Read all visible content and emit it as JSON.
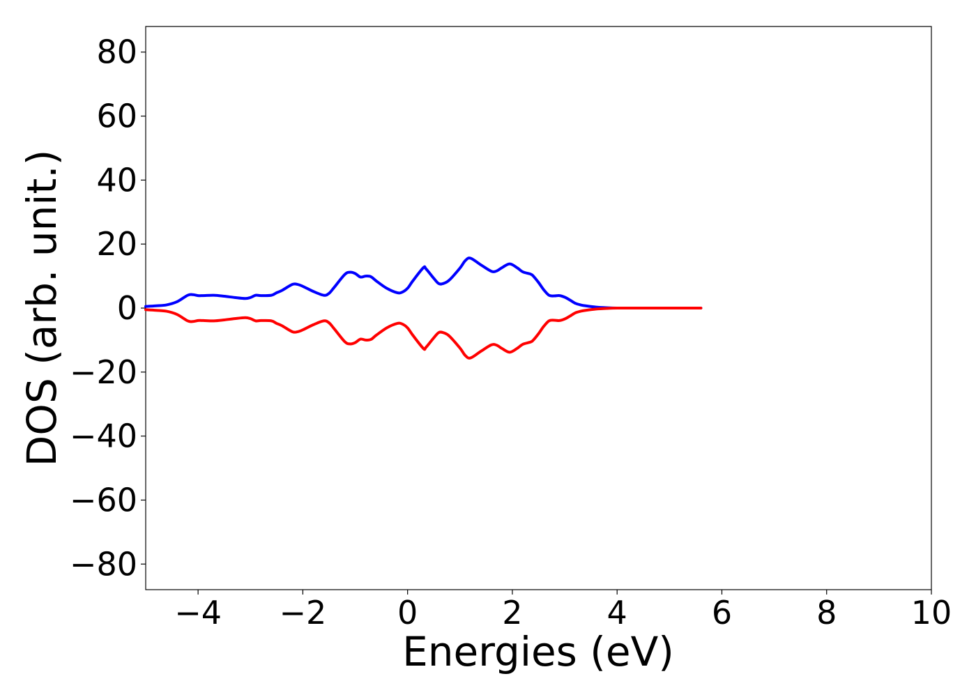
{
  "chart_data": {
    "type": "line",
    "title": "",
    "xlabel": "Energies (eV)",
    "ylabel": "DOS (arb. unit.)",
    "xlim": [
      -5,
      10
    ],
    "ylim": [
      -88,
      88
    ],
    "xticks": [
      -4,
      -2,
      0,
      2,
      4,
      6,
      8,
      10
    ],
    "xtick_labels": [
      "−4",
      "−2",
      "0",
      "2",
      "4",
      "6",
      "8",
      "10"
    ],
    "yticks": [
      80,
      60,
      40,
      20,
      0,
      -20,
      -40,
      -60,
      -80
    ],
    "ytick_labels": [
      "80",
      "60",
      "40",
      "20",
      "0",
      "−20",
      "−40",
      "−60",
      "−80"
    ],
    "grid": false,
    "legend": "none",
    "series": [
      {
        "color": "#0000ff",
        "x": [
          -5.0,
          -4.8,
          -4.6,
          -4.4,
          -4.2,
          -4.1,
          -4.0,
          -3.9,
          -3.7,
          -3.5,
          -3.3,
          -3.1,
          -3.0,
          -2.9,
          -2.8,
          -2.6,
          -2.5,
          -2.4,
          -2.2,
          -2.1,
          -2.0,
          -1.8,
          -1.6,
          -1.5,
          -1.4,
          -1.2,
          -1.1,
          -1.0,
          -0.9,
          -0.8,
          -0.7,
          -0.6,
          -0.4,
          -0.2,
          -0.1,
          0.0,
          0.1,
          0.3,
          0.35,
          0.5,
          0.6,
          0.7,
          0.8,
          1.0,
          1.1,
          1.2,
          1.4,
          1.6,
          1.7,
          1.8,
          1.95,
          2.1,
          2.2,
          2.35,
          2.4,
          2.5,
          2.6,
          2.7,
          2.8,
          2.9,
          3.0,
          3.1,
          3.2,
          3.3,
          3.4,
          3.6,
          3.8,
          4.0,
          4.5,
          5.0,
          5.6
        ],
        "y": [
          0.5,
          0.7,
          1.0,
          2.0,
          4.0,
          4.2,
          3.9,
          3.9,
          4.0,
          3.7,
          3.3,
          3.0,
          3.3,
          4.0,
          3.9,
          4.0,
          4.8,
          5.5,
          7.4,
          7.4,
          6.8,
          5.2,
          4.0,
          4.6,
          6.5,
          10.5,
          11.2,
          10.8,
          9.7,
          10.0,
          9.8,
          8.5,
          6.2,
          4.8,
          5.0,
          6.2,
          8.5,
          12.6,
          12.3,
          9.3,
          7.6,
          7.8,
          8.8,
          12.5,
          14.8,
          15.6,
          13.5,
          11.5,
          11.6,
          12.6,
          13.8,
          12.5,
          11.3,
          10.6,
          10.0,
          8.0,
          5.7,
          4.0,
          3.8,
          3.9,
          3.4,
          2.5,
          1.5,
          1.0,
          0.7,
          0.3,
          0.1,
          0.0,
          0.0,
          0.0,
          0.0
        ]
      },
      {
        "color": "#ff0000",
        "x": [
          -5.0,
          -4.8,
          -4.6,
          -4.4,
          -4.2,
          -4.1,
          -4.0,
          -3.9,
          -3.7,
          -3.5,
          -3.3,
          -3.1,
          -3.0,
          -2.9,
          -2.8,
          -2.6,
          -2.5,
          -2.4,
          -2.2,
          -2.1,
          -2.0,
          -1.8,
          -1.6,
          -1.5,
          -1.4,
          -1.2,
          -1.1,
          -1.0,
          -0.9,
          -0.8,
          -0.7,
          -0.6,
          -0.4,
          -0.2,
          -0.1,
          0.0,
          0.1,
          0.3,
          0.35,
          0.5,
          0.6,
          0.7,
          0.8,
          1.0,
          1.1,
          1.2,
          1.4,
          1.6,
          1.7,
          1.8,
          1.95,
          2.1,
          2.2,
          2.35,
          2.4,
          2.5,
          2.6,
          2.7,
          2.8,
          2.9,
          3.0,
          3.1,
          3.2,
          3.3,
          3.4,
          3.6,
          3.8,
          4.0,
          4.5,
          5.0,
          5.6
        ],
        "y": [
          -0.5,
          -0.7,
          -1.0,
          -2.0,
          -4.0,
          -4.2,
          -3.9,
          -3.9,
          -4.0,
          -3.7,
          -3.3,
          -3.0,
          -3.3,
          -4.0,
          -3.9,
          -4.0,
          -4.8,
          -5.5,
          -7.4,
          -7.4,
          -6.8,
          -5.2,
          -4.0,
          -4.6,
          -6.5,
          -10.5,
          -11.2,
          -10.8,
          -9.7,
          -10.0,
          -9.8,
          -8.5,
          -6.2,
          -4.8,
          -5.0,
          -6.2,
          -8.5,
          -12.6,
          -12.3,
          -9.3,
          -7.6,
          -7.8,
          -8.8,
          -12.5,
          -14.8,
          -15.6,
          -13.5,
          -11.5,
          -11.6,
          -12.6,
          -13.8,
          -12.5,
          -11.3,
          -10.6,
          -10.0,
          -8.0,
          -5.7,
          -4.0,
          -3.8,
          -3.9,
          -3.4,
          -2.5,
          -1.5,
          -1.0,
          -0.7,
          -0.3,
          -0.1,
          0.0,
          0.0,
          0.0,
          0.0
        ]
      }
    ]
  }
}
